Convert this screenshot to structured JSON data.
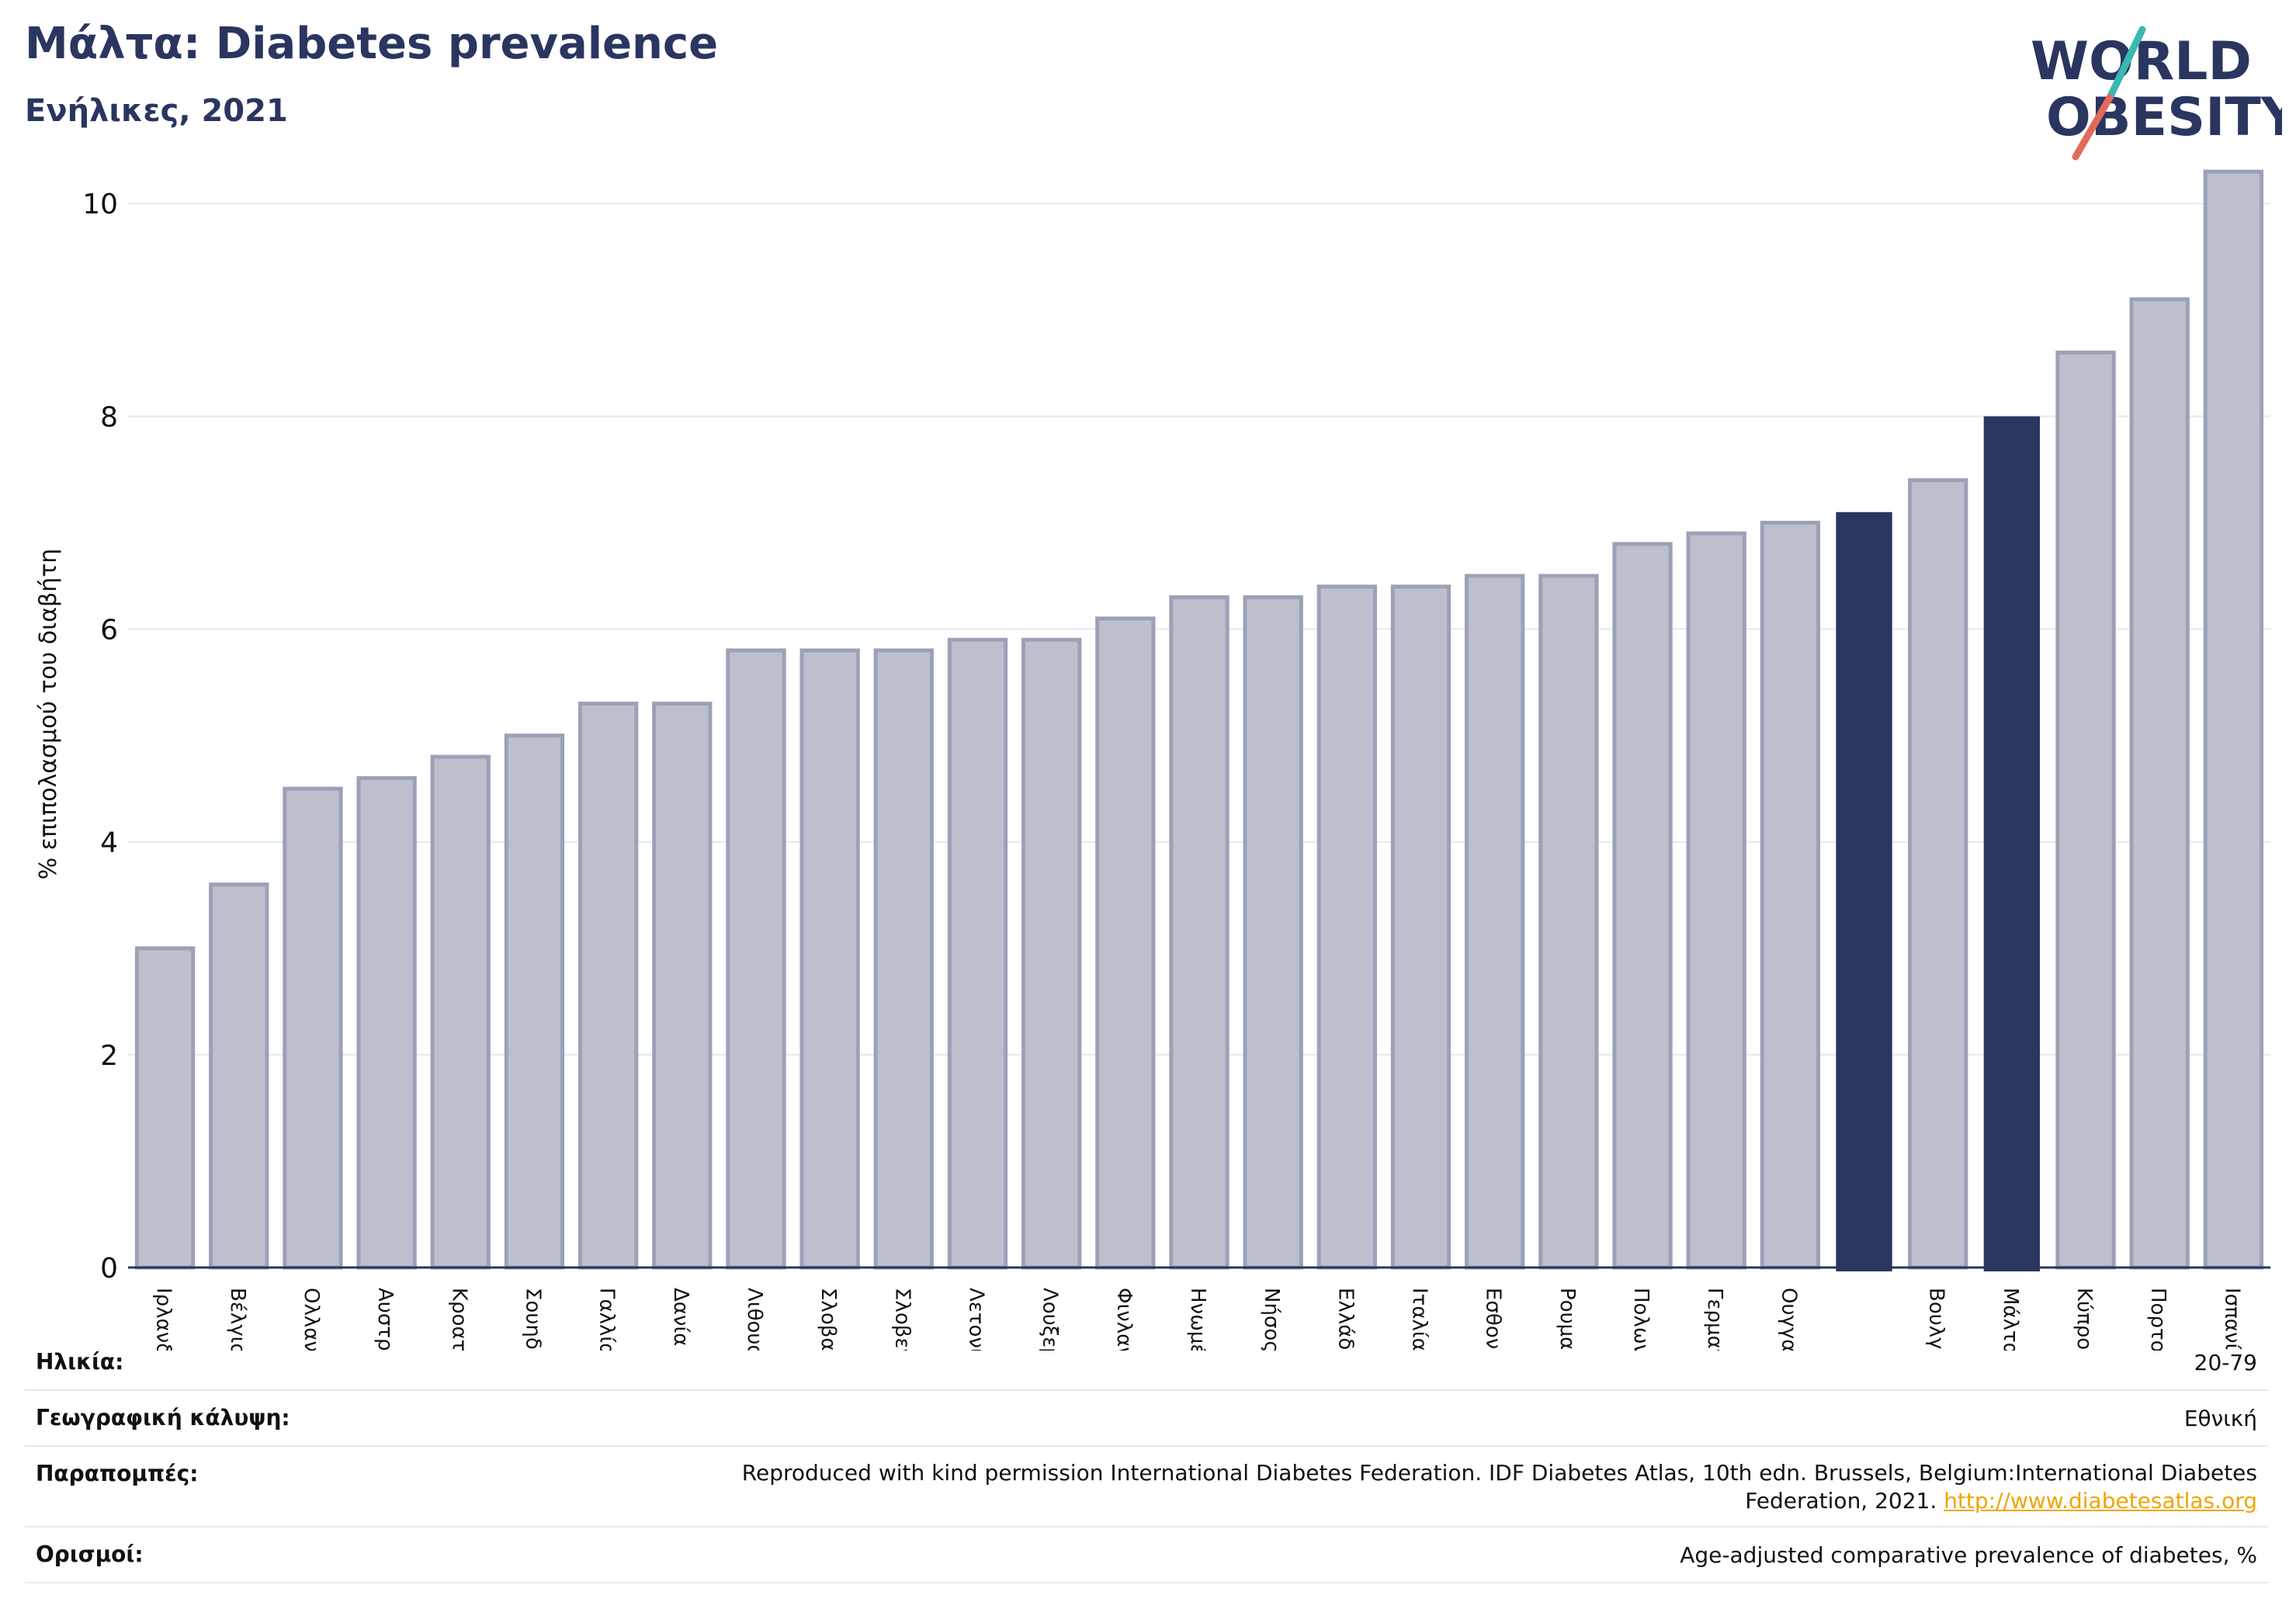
{
  "header": {
    "title": "Μάλτα: Diabetes prevalence",
    "subtitle": "Ενήλικες, 2021",
    "logo_text_line1": "WORLD",
    "logo_text_line2": "OBESITY"
  },
  "colors": {
    "title": "#2a3560",
    "bar_default": "#bdbfcc",
    "bar_default_stroke": "#9ca1b8",
    "bar_highlight": "#2a3560",
    "grid": "#e6e8f0",
    "logo_teal": "#3bb8b0",
    "logo_coral": "#e26a5a",
    "link": "#f0a500"
  },
  "chart_data": {
    "type": "bar",
    "ylabel": "% επιπολασμού του διαβήτη",
    "ylim": [
      0,
      10.6
    ],
    "yticks": [
      0,
      2,
      4,
      6,
      8,
      10
    ],
    "grid": true,
    "categories": [
      "Ιρλανδία",
      "Βέλγιο",
      "Ολλανδία",
      "Αυστρία",
      "Κροατία",
      "Σουηδία",
      "Γαλλία",
      "Δανία",
      "Λιθουανία",
      "Σλοβακία",
      "Σλοβενία",
      "Λετονία",
      "Λουξεμβούργο",
      "Φινλανδία",
      "Ηνωμένο Βασίλειο",
      "Νήσος Μαν",
      "Ελλάδα",
      "Ιταλία",
      "Εσθονία",
      "Ρουμανία",
      "Πολωνία",
      "Γερμανία",
      "Ουγγαρία",
      "",
      "Βουλγαρία",
      "Μάλτα",
      "Κύπρος",
      "Πορτογαλία",
      "Ισπανία"
    ],
    "values": [
      3.0,
      3.6,
      4.5,
      4.6,
      4.8,
      5.0,
      5.3,
      5.3,
      5.8,
      5.8,
      5.8,
      5.9,
      5.9,
      6.1,
      6.3,
      6.3,
      6.4,
      6.4,
      6.5,
      6.5,
      6.8,
      6.9,
      7.0,
      7.1,
      7.4,
      8.0,
      8.6,
      9.1,
      10.3
    ],
    "highlight": [
      false,
      false,
      false,
      false,
      false,
      false,
      false,
      false,
      false,
      false,
      false,
      false,
      false,
      false,
      false,
      false,
      false,
      false,
      false,
      false,
      false,
      false,
      false,
      true,
      false,
      true,
      false,
      false,
      false
    ]
  },
  "footer": {
    "age_label": "Ηλικία:",
    "age_value": "20-79",
    "coverage_label": "Γεωγραφική κάλυψη:",
    "coverage_value": "Εθνική",
    "references_label": "Παραπομπές:",
    "references_line1": "Reproduced with kind permission International Diabetes Federation.  IDF Diabetes Atlas, 10th edn. Brussels, Belgium:International Diabetes",
    "references_line2": "Federation, 2021.",
    "references_link": "http://www.diabetesatlas.org",
    "definitions_label": "Ορισμοί:",
    "definitions_value": "Age-adjusted comparative prevalence of diabetes, %"
  }
}
